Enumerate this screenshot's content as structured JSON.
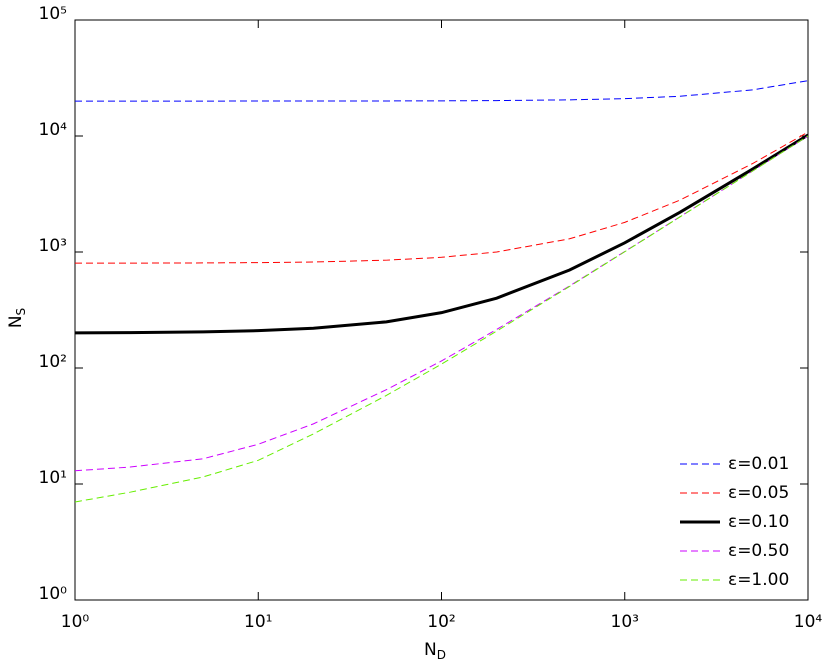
{
  "chart_data": {
    "type": "line",
    "x_label": {
      "main": "N",
      "sub": "D"
    },
    "y_label": {
      "main": "N",
      "sub": "S"
    },
    "x_log": true,
    "y_log": true,
    "grid": false,
    "legend_loc": "lower right",
    "xlim": [
      1,
      10000
    ],
    "ylim": [
      1,
      100000
    ],
    "xticks": [
      {
        "value": 1,
        "label": "10⁰"
      },
      {
        "value": 10,
        "label": "10¹"
      },
      {
        "value": 100,
        "label": "10²"
      },
      {
        "value": 1000,
        "label": "10³"
      },
      {
        "value": 10000,
        "label": "10⁴"
      }
    ],
    "yticks": [
      {
        "value": 1,
        "label": "10⁰"
      },
      {
        "value": 10,
        "label": "10¹"
      },
      {
        "value": 100,
        "label": "10²"
      },
      {
        "value": 1000,
        "label": "10³"
      },
      {
        "value": 10000,
        "label": "10⁴"
      },
      {
        "value": 100000,
        "label": "10⁵"
      }
    ],
    "x": [
      1,
      2,
      5,
      10,
      20,
      50,
      100,
      200,
      500,
      1000,
      2000,
      5000,
      10000
    ],
    "series": [
      {
        "name": "ε=0.01",
        "color": "#0000ff",
        "line_style": "dashed",
        "line_width": 1,
        "values": [
          20001,
          20002,
          20005,
          20010,
          20020,
          20050,
          20100,
          20200,
          20500,
          21000,
          22000,
          25000,
          30000
        ]
      },
      {
        "name": "ε=0.05",
        "color": "#ff0000",
        "line_style": "dashed",
        "line_width": 1,
        "values": [
          801,
          802,
          805,
          810,
          820,
          850,
          900,
          1000,
          1300,
          1800,
          2800,
          5800,
          10800
        ]
      },
      {
        "name": "ε=0.10",
        "color": "#000000",
        "line_style": "solid",
        "line_width": 3,
        "values": [
          201,
          202,
          205,
          210,
          220,
          250,
          300,
          400,
          700,
          1200,
          2200,
          5200,
          10200
        ]
      },
      {
        "name": "ε=0.50",
        "color": "#cc00ff",
        "line_style": "dashed",
        "line_width": 1,
        "values": [
          13,
          14,
          16.5,
          22,
          33,
          65,
          115,
          215,
          510,
          1010,
          2010,
          5010,
          10010
        ]
      },
      {
        "name": "ε=1.00",
        "color": "#66ee00",
        "line_style": "dashed",
        "line_width": 1,
        "values": [
          7,
          8.5,
          11.5,
          16,
          27,
          58,
          108,
          208,
          505,
          1005,
          2005,
          5005,
          10005
        ]
      }
    ]
  }
}
